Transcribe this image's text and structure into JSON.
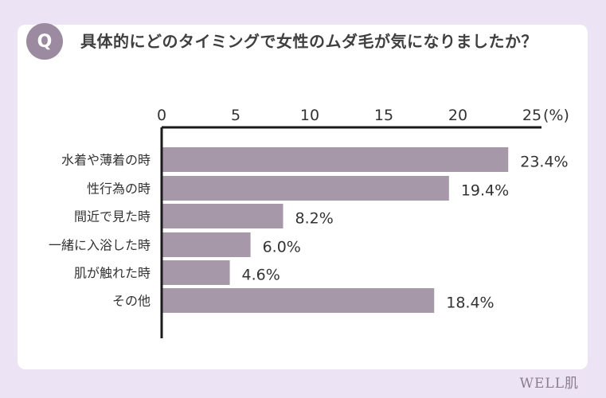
{
  "question": {
    "badge": "Q",
    "text": "具体的にどのタイミングで女性のムダ毛が気になりましたか？"
  },
  "brand": "WELL肌",
  "colors": {
    "background": "#ece4f4",
    "card": "#ffffff",
    "bar": "#a697a9",
    "badge": "#9c8aa0",
    "axis": "#1a1a1a"
  },
  "chart_data": {
    "type": "bar",
    "orientation": "horizontal",
    "categories": [
      "水着や薄着の時",
      "性行為の時",
      "間近で見た時",
      "一緒に入浴した時",
      "肌が触れた時",
      "その他"
    ],
    "values": [
      23.4,
      19.4,
      8.2,
      6.0,
      4.6,
      18.4
    ],
    "value_labels": [
      "23.4%",
      "19.4%",
      "8.2%",
      "6.0%",
      "4.6%",
      "18.4%"
    ],
    "x_ticks": [
      "0",
      "5",
      "10",
      "15",
      "20",
      "25"
    ],
    "x_unit": "(%)",
    "xlim": [
      0,
      25
    ],
    "grid": false
  }
}
